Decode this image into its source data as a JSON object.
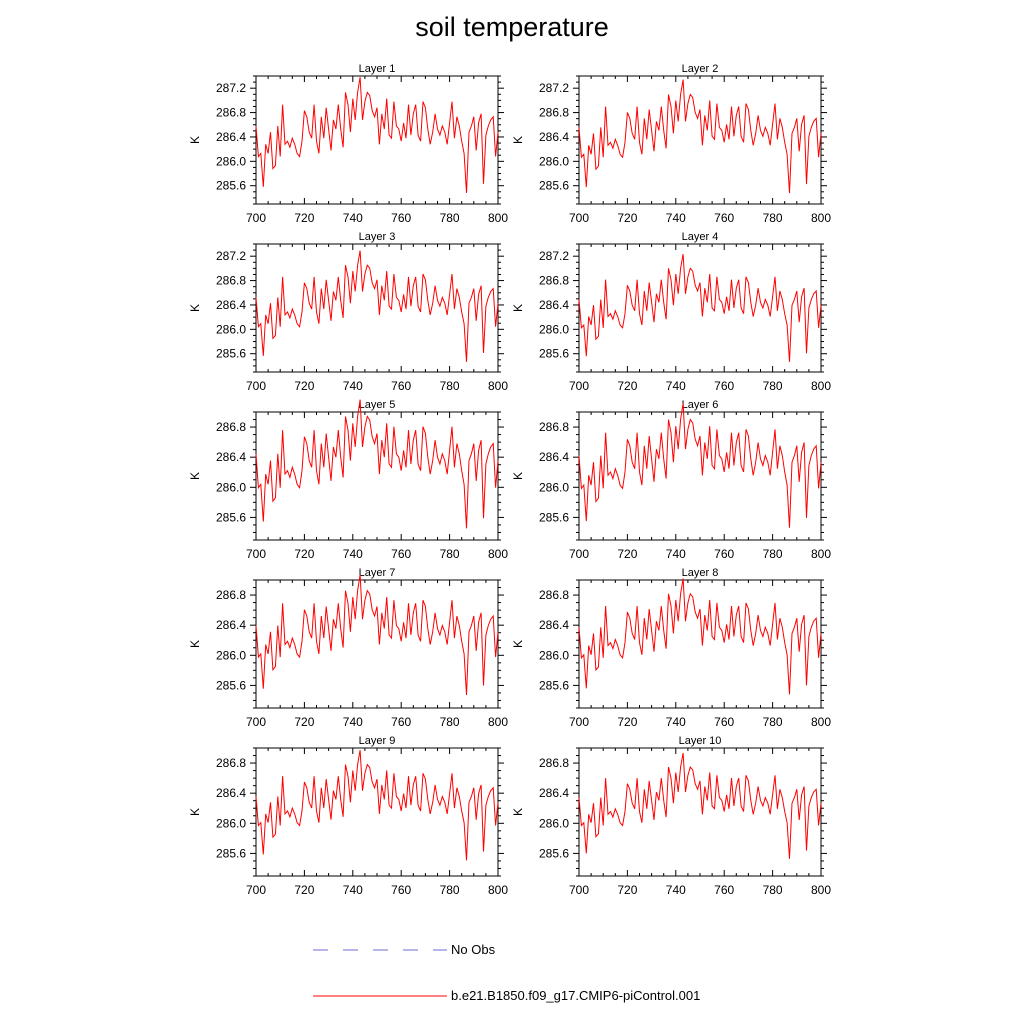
{
  "figure": {
    "title": "soil temperature",
    "ylabel": "K",
    "legend": [
      {
        "label": "No Obs",
        "color": "#6b6bd6",
        "style": "dashed"
      },
      {
        "label": "b.e21.B1850.f09_g17.CMIP6-piControl.001",
        "color": "#ff0000",
        "style": "solid"
      }
    ]
  },
  "chart_data": [
    {
      "type": "line",
      "title": "Layer 1",
      "xlabel": "",
      "ylabel": "K",
      "xlim": [
        700,
        800
      ],
      "ylim": [
        285.3,
        287.4
      ],
      "xticks": [
        "700",
        "720",
        "740",
        "760",
        "780",
        "800"
      ],
      "yticks": [
        "285.6",
        "286.0",
        "286.4",
        "286.8",
        "287.2"
      ],
      "offset": 0.08,
      "scale": 1.0
    },
    {
      "type": "line",
      "title": "Layer 2",
      "xlabel": "",
      "ylabel": "K",
      "xlim": [
        700,
        800
      ],
      "ylim": [
        285.3,
        287.4
      ],
      "xticks": [
        "700",
        "720",
        "740",
        "760",
        "780",
        "800"
      ],
      "yticks": [
        "285.6",
        "286.0",
        "286.4",
        "286.8",
        "287.2"
      ],
      "offset": 0.06,
      "scale": 0.98
    },
    {
      "type": "line",
      "title": "Layer 3",
      "xlabel": "",
      "ylabel": "K",
      "xlim": [
        700,
        800
      ],
      "ylim": [
        285.3,
        287.4
      ],
      "xticks": [
        "700",
        "720",
        "740",
        "760",
        "780",
        "800"
      ],
      "yticks": [
        "285.6",
        "286.0",
        "286.4",
        "286.8",
        "287.2"
      ],
      "offset": 0.03,
      "scale": 0.96
    },
    {
      "type": "line",
      "title": "Layer 4",
      "xlabel": "",
      "ylabel": "K",
      "xlim": [
        700,
        800
      ],
      "ylim": [
        285.3,
        287.4
      ],
      "xticks": [
        "700",
        "720",
        "740",
        "760",
        "780",
        "800"
      ],
      "yticks": [
        "285.6",
        "286.0",
        "286.4",
        "286.8",
        "287.2"
      ],
      "offset": 0.0,
      "scale": 0.93
    },
    {
      "type": "line",
      "title": "Layer 5",
      "xlabel": "",
      "ylabel": "K",
      "xlim": [
        700,
        800
      ],
      "ylim": [
        285.3,
        287.0
      ],
      "xticks": [
        "700",
        "720",
        "740",
        "760",
        "780",
        "800"
      ],
      "yticks": [
        "285.6",
        "286.0",
        "286.4",
        "286.8"
      ],
      "offset": -0.04,
      "scale": 0.9
    },
    {
      "type": "line",
      "title": "Layer 6",
      "xlabel": "",
      "ylabel": "K",
      "xlim": [
        700,
        800
      ],
      "ylim": [
        285.3,
        287.0
      ],
      "xticks": [
        "700",
        "720",
        "740",
        "760",
        "780",
        "800"
      ],
      "yticks": [
        "285.6",
        "286.0",
        "286.4",
        "286.8"
      ],
      "offset": -0.06,
      "scale": 0.87
    },
    {
      "type": "line",
      "title": "Layer 7",
      "xlabel": "",
      "ylabel": "K",
      "xlim": [
        700,
        800
      ],
      "ylim": [
        285.3,
        287.0
      ],
      "xticks": [
        "700",
        "720",
        "740",
        "760",
        "780",
        "800"
      ],
      "yticks": [
        "285.6",
        "286.0",
        "286.4",
        "286.8"
      ],
      "offset": -0.08,
      "scale": 0.84
    },
    {
      "type": "line",
      "title": "Layer 8",
      "xlabel": "",
      "ylabel": "K",
      "xlim": [
        700,
        800
      ],
      "ylim": [
        285.3,
        287.0
      ],
      "xticks": [
        "700",
        "720",
        "740",
        "760",
        "780",
        "800"
      ],
      "yticks": [
        "285.6",
        "286.0",
        "286.4",
        "286.8"
      ],
      "offset": -0.1,
      "scale": 0.81
    },
    {
      "type": "line",
      "title": "Layer 9",
      "xlabel": "",
      "ylabel": "K",
      "xlim": [
        700,
        800
      ],
      "ylim": [
        285.3,
        287.0
      ],
      "xticks": [
        "700",
        "720",
        "740",
        "760",
        "780",
        "800"
      ],
      "yticks": [
        "285.6",
        "286.0",
        "286.4",
        "286.8"
      ],
      "offset": -0.11,
      "scale": 0.77
    },
    {
      "type": "line",
      "title": "Layer 10",
      "xlabel": "",
      "ylabel": "K",
      "xlim": [
        700,
        800
      ],
      "ylim": [
        285.3,
        287.0
      ],
      "xticks": [
        "700",
        "720",
        "740",
        "760",
        "780",
        "800"
      ],
      "yticks": [
        "285.6",
        "286.0",
        "286.4",
        "286.8"
      ],
      "offset": -0.12,
      "scale": 0.74
    }
  ],
  "base_series": {
    "x_start": 700,
    "x_step": 1,
    "mean": 286.35,
    "anomaly": [
      0.15,
      -0.35,
      -0.3,
      -0.85,
      -0.15,
      -0.3,
      0.05,
      -0.55,
      -0.5,
      0.15,
      -0.35,
      0.5,
      -0.15,
      -0.1,
      -0.2,
      -0.05,
      -0.15,
      -0.3,
      -0.35,
      -0.1,
      0.4,
      0.3,
      0.05,
      -0.05,
      0.5,
      -0.1,
      -0.3,
      0.3,
      -0.05,
      0.45,
      0.1,
      -0.25,
      0.25,
      0.1,
      0.5,
      0.1,
      -0.2,
      0.7,
      0.5,
      0.05,
      0.6,
      0.25,
      0.7,
      0.95,
      0.25,
      0.55,
      0.7,
      0.65,
      0.4,
      0.3,
      0.45,
      -0.15,
      0.35,
      0.1,
      0.6,
      0.0,
      -0.05,
      0.55,
      0.15,
      0.1,
      -0.1,
      0.2,
      -0.05,
      0.5,
      0.0,
      0.35,
      0.5,
      0.0,
      -0.1,
      0.55,
      0.45,
      0.1,
      -0.15,
      0.05,
      0.35,
      0.1,
      0.0,
      0.15,
      0.05,
      -0.15,
      0.2,
      0.55,
      -0.05,
      0.3,
      0.15,
      -0.1,
      -0.3,
      -0.95,
      0.05,
      0.15,
      0.3,
      -0.25,
      0.2,
      0.35,
      -0.8,
      0.0,
      0.15,
      0.25,
      0.3,
      -0.35,
      0.05
    ]
  }
}
